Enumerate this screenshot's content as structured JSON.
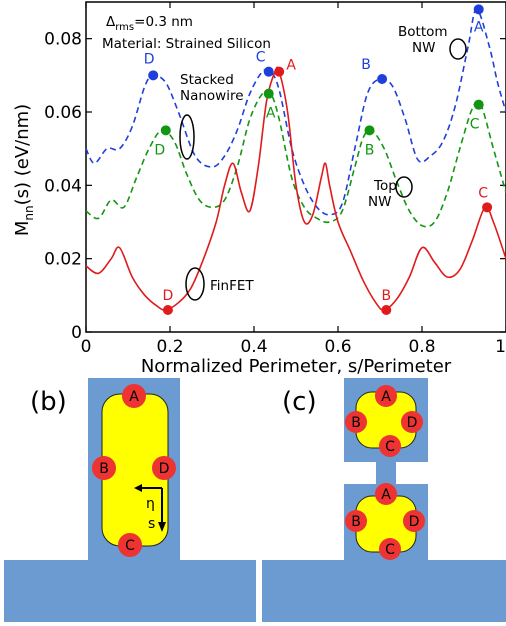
{
  "chart_data": {
    "type": "line",
    "ylabel_main": "M",
    "ylabel_sub": "nn",
    "ylabel_rest": "(s) (eV/nm)",
    "xlabel": "Normalized Perimeter, s/Perimeter",
    "xlim": [
      0,
      1
    ],
    "ylim": [
      0,
      0.09
    ],
    "xticks": [
      "0",
      "0.2",
      "0.4",
      "0.6",
      "0.8",
      "1"
    ],
    "xtick_values": [
      0,
      0.2,
      0.4,
      0.6,
      0.8,
      1
    ],
    "yticks": [
      "0",
      "0.02",
      "0.04",
      "0.06",
      "0.08"
    ],
    "ytick_values": [
      0,
      0.02,
      0.04,
      0.06,
      0.08
    ],
    "annotation_delta_sym": "Δ",
    "annotation_delta_sub": "rms",
    "annotation_delta_rest": "=0.3 nm",
    "annotation_material": "Material: Strained Silicon",
    "series": [
      {
        "name_lines": [
          "Bottom",
          "NW"
        ],
        "color": "#1f3fdb",
        "dash": "dashed",
        "x": [
          0.0,
          0.02,
          0.05,
          0.08,
          0.11,
          0.14,
          0.16,
          0.19,
          0.22,
          0.26,
          0.3,
          0.33,
          0.36,
          0.39,
          0.42,
          0.44,
          0.46,
          0.49,
          0.52,
          0.55,
          0.58,
          0.61,
          0.64,
          0.67,
          0.7,
          0.73,
          0.76,
          0.79,
          0.82,
          0.85,
          0.88,
          0.91,
          0.93,
          0.96,
          0.98,
          1.0
        ],
        "y": [
          0.05,
          0.046,
          0.05,
          0.05,
          0.056,
          0.067,
          0.07,
          0.068,
          0.06,
          0.048,
          0.045,
          0.048,
          0.055,
          0.065,
          0.071,
          0.071,
          0.066,
          0.05,
          0.04,
          0.034,
          0.032,
          0.035,
          0.05,
          0.065,
          0.069,
          0.067,
          0.058,
          0.047,
          0.048,
          0.052,
          0.062,
          0.078,
          0.088,
          0.078,
          0.068,
          0.06
        ]
      },
      {
        "name_lines": [
          "Top",
          "NW"
        ],
        "color": "#129612",
        "dash": "dashed",
        "x": [
          0.0,
          0.03,
          0.06,
          0.09,
          0.12,
          0.15,
          0.18,
          0.21,
          0.24,
          0.27,
          0.3,
          0.33,
          0.36,
          0.39,
          0.42,
          0.44,
          0.46,
          0.49,
          0.52,
          0.55,
          0.58,
          0.61,
          0.64,
          0.66,
          0.68,
          0.71,
          0.74,
          0.77,
          0.8,
          0.83,
          0.86,
          0.89,
          0.92,
          0.94,
          0.97,
          1.0
        ],
        "y": [
          0.033,
          0.031,
          0.036,
          0.034,
          0.042,
          0.05,
          0.055,
          0.052,
          0.043,
          0.036,
          0.034,
          0.036,
          0.045,
          0.058,
          0.065,
          0.065,
          0.058,
          0.042,
          0.034,
          0.031,
          0.03,
          0.033,
          0.045,
          0.053,
          0.055,
          0.05,
          0.041,
          0.033,
          0.029,
          0.03,
          0.038,
          0.05,
          0.061,
          0.062,
          0.05,
          0.038
        ]
      },
      {
        "name_lines": [
          "FinFET"
        ],
        "color": "#e01b1b",
        "dash": "solid",
        "x": [
          0.0,
          0.03,
          0.06,
          0.08,
          0.11,
          0.14,
          0.17,
          0.19,
          0.22,
          0.25,
          0.28,
          0.31,
          0.33,
          0.35,
          0.37,
          0.39,
          0.41,
          0.43,
          0.45,
          0.46,
          0.48,
          0.5,
          0.52,
          0.54,
          0.56,
          0.57,
          0.58,
          0.6,
          0.63,
          0.66,
          0.69,
          0.71,
          0.74,
          0.77,
          0.8,
          0.83,
          0.86,
          0.89,
          0.92,
          0.95,
          0.97,
          1.0
        ],
        "y": [
          0.018,
          0.016,
          0.02,
          0.023,
          0.015,
          0.01,
          0.007,
          0.006,
          0.008,
          0.012,
          0.02,
          0.03,
          0.04,
          0.046,
          0.038,
          0.033,
          0.045,
          0.063,
          0.071,
          0.071,
          0.06,
          0.04,
          0.03,
          0.032,
          0.042,
          0.046,
          0.04,
          0.03,
          0.022,
          0.014,
          0.008,
          0.006,
          0.009,
          0.015,
          0.023,
          0.019,
          0.015,
          0.017,
          0.025,
          0.034,
          0.03,
          0.02
        ]
      }
    ],
    "points": [
      {
        "series": 0,
        "label": "D",
        "x": 0.16,
        "y": 0.07,
        "lx": -4,
        "ly": -12
      },
      {
        "series": 0,
        "label": "C",
        "x": 0.435,
        "y": 0.071,
        "lx": -8,
        "ly": -10
      },
      {
        "series": 0,
        "label": "B",
        "x": 0.705,
        "y": 0.069,
        "lx": -16,
        "ly": -10
      },
      {
        "series": 0,
        "label": "A",
        "x": 0.935,
        "y": 0.088,
        "lx": 0,
        "ly": 22
      },
      {
        "series": 1,
        "label": "D",
        "x": 0.19,
        "y": 0.055,
        "lx": -6,
        "ly": 24
      },
      {
        "series": 1,
        "label": "A",
        "x": 0.435,
        "y": 0.065,
        "lx": 2,
        "ly": 24
      },
      {
        "series": 1,
        "label": "B",
        "x": 0.675,
        "y": 0.055,
        "lx": 0,
        "ly": 24
      },
      {
        "series": 1,
        "label": "C",
        "x": 0.935,
        "y": 0.062,
        "lx": -4,
        "ly": 24
      },
      {
        "series": 2,
        "label": "A",
        "x": 0.46,
        "y": 0.071,
        "lx": 12,
        "ly": -2
      },
      {
        "series": 2,
        "label": "D",
        "x": 0.195,
        "y": 0.006,
        "lx": 0,
        "ly": -10
      },
      {
        "series": 2,
        "label": "B",
        "x": 0.715,
        "y": 0.006,
        "lx": 0,
        "ly": -10
      },
      {
        "series": 2,
        "label": "C",
        "x": 0.955,
        "y": 0.034,
        "lx": -4,
        "ly": -10
      }
    ]
  },
  "panels": {
    "b": {
      "label": "(b)",
      "points": [
        "A",
        "B",
        "D",
        "C"
      ],
      "axis_eta": "η",
      "axis_s": "s"
    },
    "c": {
      "label": "(c)",
      "top_points": [
        "A",
        "B",
        "D",
        "C"
      ],
      "bottom_points": [
        "A",
        "B",
        "D",
        "C"
      ]
    }
  },
  "colors": {
    "substrate": "#6b9bd1",
    "channel": "#ffff00",
    "dot": "#ee3333"
  }
}
